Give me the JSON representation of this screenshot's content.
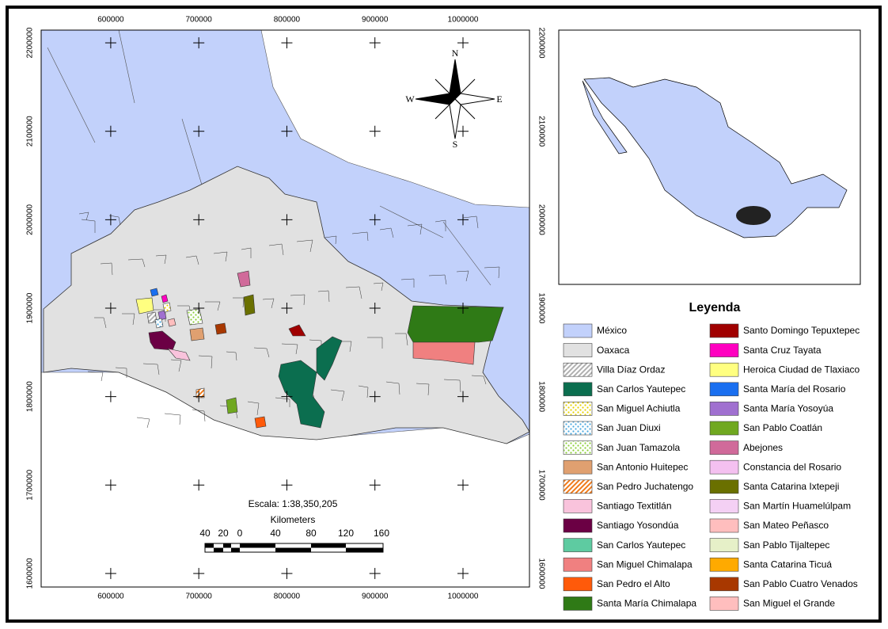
{
  "map": {
    "x_ticks": [
      600000,
      700000,
      800000,
      900000,
      1000000
    ],
    "y_ticks": [
      1600000,
      1700000,
      1800000,
      1900000,
      2000000,
      2100000,
      2200000
    ],
    "xlim": [
      521000,
      1075500
    ],
    "ylim": [
      1584700,
      2214400
    ],
    "compass": {
      "n": "N",
      "s": "S",
      "e": "E",
      "w": "W"
    },
    "scale": {
      "text": "Escala: 1:38,350,205",
      "units": "Kilometers",
      "labels": [
        40,
        20,
        0,
        40,
        80,
        120,
        160
      ]
    },
    "legend": {
      "title": "Leyenda",
      "items": [
        {
          "name": "México",
          "color": "#c2d1fb"
        },
        {
          "name": "Oaxaca",
          "color": "#e1e1e1"
        },
        {
          "name": "Villa Díaz Ordaz",
          "color": "#b0b0b0",
          "pattern": "hatch"
        },
        {
          "name": "San Carlos Yautepec",
          "color": "#0b6e4f"
        },
        {
          "name": "San Miguel Achiutla",
          "color": "#e6d200",
          "pattern": "dots"
        },
        {
          "name": "San Juan Diuxi",
          "color": "#4aa8e0",
          "pattern": "dots"
        },
        {
          "name": "San Juan Tamazola",
          "color": "#8ccf3a",
          "pattern": "dots"
        },
        {
          "name": "San Antonio Huitepec",
          "color": "#e0a070"
        },
        {
          "name": "San Pedro Juchatengo",
          "color": "#f07a1a",
          "pattern": "hatch"
        },
        {
          "name": "Santiago Textitlán",
          "color": "#f9c3dc"
        },
        {
          "name": "Santiago Yosondúa",
          "color": "#6b0044"
        },
        {
          "name": "San Carlos Yautepec",
          "color": "#5ecba1"
        },
        {
          "name": "San Miguel Chimalapa",
          "color": "#f08080"
        },
        {
          "name": "San Pedro el Alto",
          "color": "#ff5a0a"
        },
        {
          "name": "Santa María Chimalapa",
          "color": "#2f7a16"
        },
        {
          "name": "Santo Domingo Tepuxtepec",
          "color": "#a00000"
        },
        {
          "name": "Santa Cruz Tayata",
          "color": "#ff00c0"
        },
        {
          "name": "Heroica Ciudad de Tlaxiaco",
          "color": "#ffff80"
        },
        {
          "name": "Santa María del Rosario",
          "color": "#1a6ff0"
        },
        {
          "name": "Santa María Yosoyúa",
          "color": "#a070d0"
        },
        {
          "name": "San Pablo Coatlán",
          "color": "#70a820"
        },
        {
          "name": "Abejones",
          "color": "#d06a9a"
        },
        {
          "name": "Constancia del Rosario",
          "color": "#f4c0f0"
        },
        {
          "name": "Santa Catarina Ixtepeji",
          "color": "#6a7000"
        },
        {
          "name": "San Martín Huamelúlpam",
          "color": "#f4d0f4"
        },
        {
          "name": "San Mateo Peñasco",
          "color": "#ffbebe"
        },
        {
          "name": "San Pablo Tijaltepec",
          "color": "#e6f0c8"
        },
        {
          "name": "Santa Catarina Ticuá",
          "color": "#ffaa00"
        },
        {
          "name": "San Pablo Cuatro Venados",
          "color": "#a83800"
        },
        {
          "name": "San Miguel el Grande",
          "color": "#ffbebe"
        }
      ]
    }
  }
}
